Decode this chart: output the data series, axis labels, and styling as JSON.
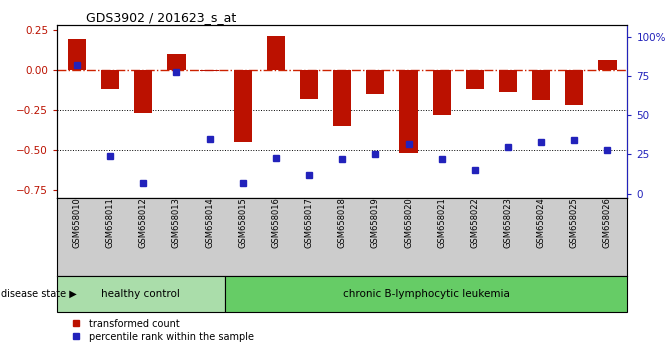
{
  "title": "GDS3902 / 201623_s_at",
  "samples": [
    "GSM658010",
    "GSM658011",
    "GSM658012",
    "GSM658013",
    "GSM658014",
    "GSM658015",
    "GSM658016",
    "GSM658017",
    "GSM658018",
    "GSM658019",
    "GSM658020",
    "GSM658021",
    "GSM658022",
    "GSM658023",
    "GSM658024",
    "GSM658025",
    "GSM658026"
  ],
  "bar_values": [
    0.19,
    -0.12,
    -0.27,
    0.1,
    -0.01,
    -0.45,
    0.21,
    -0.18,
    -0.35,
    -0.15,
    -0.52,
    -0.28,
    -0.12,
    -0.14,
    -0.19,
    -0.22,
    0.06
  ],
  "dot_values": [
    82,
    24,
    7,
    78,
    35,
    7,
    23,
    12,
    22,
    25,
    32,
    22,
    15,
    30,
    33,
    34,
    28
  ],
  "healthy_count": 5,
  "bar_color": "#bb1100",
  "dot_color": "#2222bb",
  "zero_line_color": "#cc2200",
  "grid_color": "#000000",
  "ylim_left": [
    -0.8,
    0.28
  ],
  "ylim_right": [
    -3.0,
    108.0
  ],
  "yticks_left": [
    0.25,
    0.0,
    -0.25,
    -0.5,
    -0.75
  ],
  "yticks_right": [
    0,
    25,
    50,
    75,
    100
  ],
  "healthy_label": "healthy control",
  "disease_label": "chronic B-lymphocytic leukemia",
  "legend1": "transformed count",
  "legend2": "percentile rank within the sample",
  "disease_state_label": "disease state",
  "bg_color": "#ffffff",
  "plot_bg_color": "#ffffff",
  "tick_bg_color": "#cccccc",
  "healthy_bg": "#aaddaa",
  "disease_bg": "#66cc66"
}
